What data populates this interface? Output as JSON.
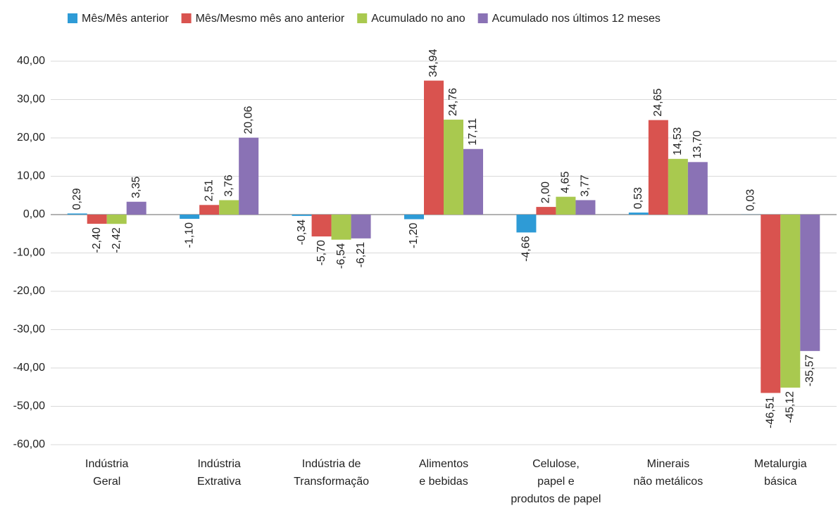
{
  "chart_data": {
    "type": "bar",
    "categories": [
      [
        "Indústria",
        "Geral"
      ],
      [
        "Indústria",
        "Extrativa"
      ],
      [
        "Indústria de",
        "Transformação"
      ],
      [
        "Alimentos",
        "e bebidas"
      ],
      [
        "Celulose,",
        "papel e",
        "produtos de papel"
      ],
      [
        "Minerais",
        "não metálicos"
      ],
      [
        "Metalurgia",
        "básica"
      ]
    ],
    "series": [
      {
        "name": "Mês/Mês anterior",
        "color": "#2e9bd6",
        "values": [
          0.29,
          -1.1,
          -0.34,
          -1.2,
          -4.66,
          0.53,
          0.03
        ],
        "value_labels": [
          "0,29",
          "-1,10",
          "-0,34",
          "-1,20",
          "-4,66",
          "0,53",
          "0,03"
        ]
      },
      {
        "name": "Mês/Mesmo mês ano anterior",
        "color": "#d9534f",
        "values": [
          -2.4,
          2.51,
          -5.7,
          34.94,
          2.0,
          24.65,
          -46.51
        ],
        "value_labels": [
          "-2,40",
          "2,51",
          "-5,70",
          "34,94",
          "2,00",
          "24,65",
          "-46,51"
        ]
      },
      {
        "name": "Acumulado no ano",
        "color": "#a9c94f",
        "values": [
          -2.42,
          3.76,
          -6.54,
          24.76,
          4.65,
          14.53,
          -45.12
        ],
        "value_labels": [
          "-2,42",
          "3,76",
          "-6,54",
          "24,76",
          "4,65",
          "14,53",
          "-45,12"
        ]
      },
      {
        "name": "Acumulado nos últimos 12 meses",
        "color": "#8a72b5",
        "values": [
          3.35,
          20.06,
          -6.21,
          17.11,
          3.77,
          13.7,
          -35.57
        ],
        "value_labels": [
          "3,35",
          "20,06",
          "-6,21",
          "17,11",
          "3,77",
          "13,70",
          "-35,57"
        ]
      }
    ],
    "ylim": [
      -60,
      40
    ],
    "yticks": [
      {
        "value": -60,
        "label": "-60,00"
      },
      {
        "value": -50,
        "label": "-50,00"
      },
      {
        "value": -40,
        "label": "-40,00"
      },
      {
        "value": -30,
        "label": "-30,00"
      },
      {
        "value": -20,
        "label": "-20,00"
      },
      {
        "value": -10,
        "label": "-10,00"
      },
      {
        "value": 0,
        "label": "0,00"
      },
      {
        "value": 10,
        "label": "10,00"
      },
      {
        "value": 20,
        "label": "20,00"
      },
      {
        "value": 30,
        "label": "30,00"
      },
      {
        "value": 40,
        "label": "40,00"
      }
    ],
    "grid": true,
    "legend": "top"
  }
}
